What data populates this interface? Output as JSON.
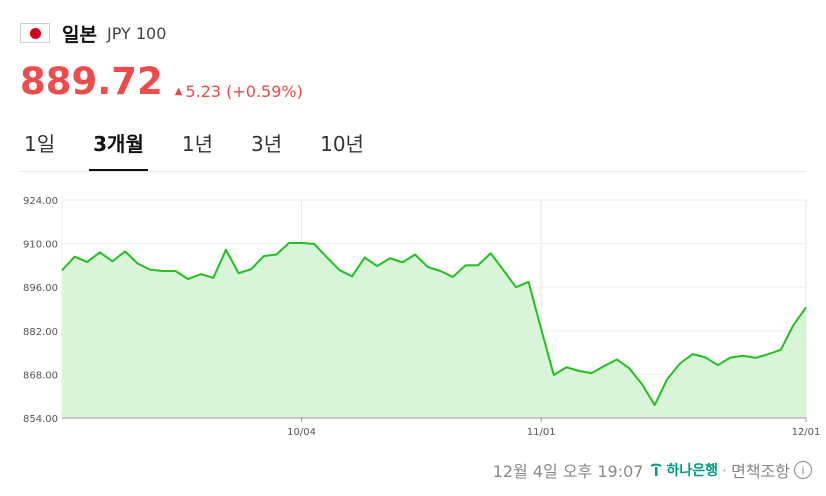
{
  "header": {
    "country": "일본",
    "currency_code": "JPY 100",
    "flag_icon": "japan-flag-icon"
  },
  "quote": {
    "price": "889.72",
    "change_icon": "triangle-up-icon",
    "change": "5.23",
    "change_pct": "(+0.59%)",
    "color": "#ee4b4b"
  },
  "tabs": [
    {
      "label": "1일",
      "active": false
    },
    {
      "label": "3개월",
      "active": true
    },
    {
      "label": "1년",
      "active": false
    },
    {
      "label": "3년",
      "active": false
    },
    {
      "label": "10년",
      "active": false
    }
  ],
  "chart_data": {
    "type": "area",
    "title": "",
    "xlabel": "",
    "ylabel": "",
    "ylim": [
      854,
      924
    ],
    "y_ticks": [
      "924.00",
      "910.00",
      "896.00",
      "882.00",
      "868.00",
      "854.00"
    ],
    "x_ticks": [
      {
        "label": "10/04",
        "index": 19
      },
      {
        "label": "11/01",
        "index": 38
      },
      {
        "label": "12/01",
        "index": 59
      }
    ],
    "grid": true,
    "line_color": "#22c020",
    "fill_color": "#d9f5d9",
    "series": [
      {
        "values": [
          901.4,
          905.8,
          904.1,
          907.2,
          904.3,
          907.5,
          903.6,
          901.6,
          901.2,
          901.2,
          898.6,
          900.2,
          899.0,
          908.0,
          900.5,
          901.8,
          906.0,
          906.5,
          910.2,
          910.2,
          909.9,
          905.6,
          901.5,
          899.5,
          905.5,
          902.8,
          905.3,
          904.0,
          906.5,
          902.5,
          901.2,
          899.3,
          903.0,
          903.1,
          906.9,
          901.5,
          896.0,
          897.7,
          882.5,
          867.8,
          870.3,
          869.1,
          868.4,
          870.7,
          872.8,
          869.9,
          864.8,
          858.2,
          866.5,
          871.5,
          874.5,
          873.5,
          871.0,
          873.4,
          874.0,
          873.3,
          874.5,
          875.9,
          883.8,
          889.5
        ]
      }
    ]
  },
  "footer": {
    "timestamp": "12월 4일 오후 19:07",
    "bank_name": "하나은행",
    "separator": "·",
    "disclaimer": "면책조항",
    "info_icon": "i"
  }
}
